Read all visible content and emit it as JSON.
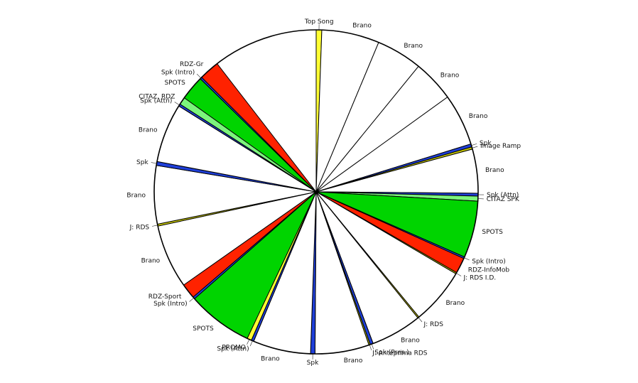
{
  "chart_data": {
    "type": "pie",
    "title": "",
    "start_angle_deg": 0,
    "direction": "clockwise",
    "legend": "none",
    "palette": {
      "song": "#ffffff",
      "speak": "#1f3fd8",
      "spots": "#00d400",
      "citaz": "#7cf57c",
      "news": "#ff2200",
      "promo": "#ffff33",
      "jingle": "#c8c800"
    },
    "slices": [
      {
        "label": "Top Song",
        "kind": "promo",
        "degrees": 2.0
      },
      {
        "label": "Brano",
        "kind": "song",
        "degrees": 20.7
      },
      {
        "label": "Brano",
        "kind": "song",
        "degrees": 16.5
      },
      {
        "label": "Brano",
        "kind": "song",
        "degrees": 15.0
      },
      {
        "label": "Brano",
        "kind": "song",
        "degrees": 18.6
      },
      {
        "label": "Spk",
        "kind": "speak",
        "degrees": 1.1
      },
      {
        "label": "Image Ramp",
        "kind": "jingle",
        "degrees": 0.8
      },
      {
        "label": "Brano",
        "kind": "song",
        "degrees": 15.8
      },
      {
        "label": "Spk (Attn)",
        "kind": "speak",
        "degrees": 1.0
      },
      {
        "label": "CITAZ SPK",
        "kind": "citaz",
        "degrees": 1.8
      },
      {
        "label": "SPOTS",
        "kind": "spots",
        "degrees": 20.4
      },
      {
        "label": "Spk (Intro)",
        "kind": "speak",
        "degrees": 0.6
      },
      {
        "label": "RDZ-InfoMob",
        "kind": "news",
        "degrees": 5.6
      },
      {
        "label": "J: RDS I.D.",
        "kind": "jingle",
        "degrees": 0.5
      },
      {
        "label": "Brano",
        "kind": "song",
        "degrees": 20.2
      },
      {
        "label": "J: RDS",
        "kind": "jingle",
        "degrees": 0.5
      },
      {
        "label": "Brano",
        "kind": "song",
        "degrees": 18.3
      },
      {
        "label": "Spk (Pres.)",
        "kind": "speak",
        "degrees": 1.1
      },
      {
        "label": "J: Anteprima RDS",
        "kind": "jingle",
        "degrees": 0.5
      },
      {
        "label": "Brano",
        "kind": "song",
        "degrees": 19.4
      },
      {
        "label": "Spk",
        "kind": "speak",
        "degrees": 1.6
      },
      {
        "label": "Brano",
        "kind": "song",
        "degrees": 20.7
      },
      {
        "label": "Spk (Attn)",
        "kind": "speak",
        "degrees": 0.9
      },
      {
        "label": "PROMO",
        "kind": "promo",
        "degrees": 1.6
      },
      {
        "label": "SPOTS",
        "kind": "spots",
        "degrees": 23.5
      },
      {
        "label": "Spk (Intro)",
        "kind": "speak",
        "degrees": 0.8
      },
      {
        "label": "RDZ-Sport",
        "kind": "news",
        "degrees": 5.4
      },
      {
        "label": "Brano",
        "kind": "song",
        "degrees": 22.9
      },
      {
        "label": "J: RDS",
        "kind": "jingle",
        "degrees": 0.7
      },
      {
        "label": "Brano",
        "kind": "song",
        "degrees": 20.9
      },
      {
        "label": "Spk",
        "kind": "speak",
        "degrees": 1.4
      },
      {
        "label": "Brano",
        "kind": "song",
        "degrees": 21.2
      },
      {
        "label": "Spk (Attn)",
        "kind": "speak",
        "degrees": 0.8
      },
      {
        "label": "CITAZ. RDZ",
        "kind": "citaz",
        "degrees": 2.7
      },
      {
        "label": "SPOTS",
        "kind": "spots",
        "degrees": 8.8
      },
      {
        "label": "Spk (Intro)",
        "kind": "speak",
        "degrees": 0.7
      },
      {
        "label": "RDZ-Gr",
        "kind": "news",
        "degrees": 7.3
      }
    ]
  }
}
